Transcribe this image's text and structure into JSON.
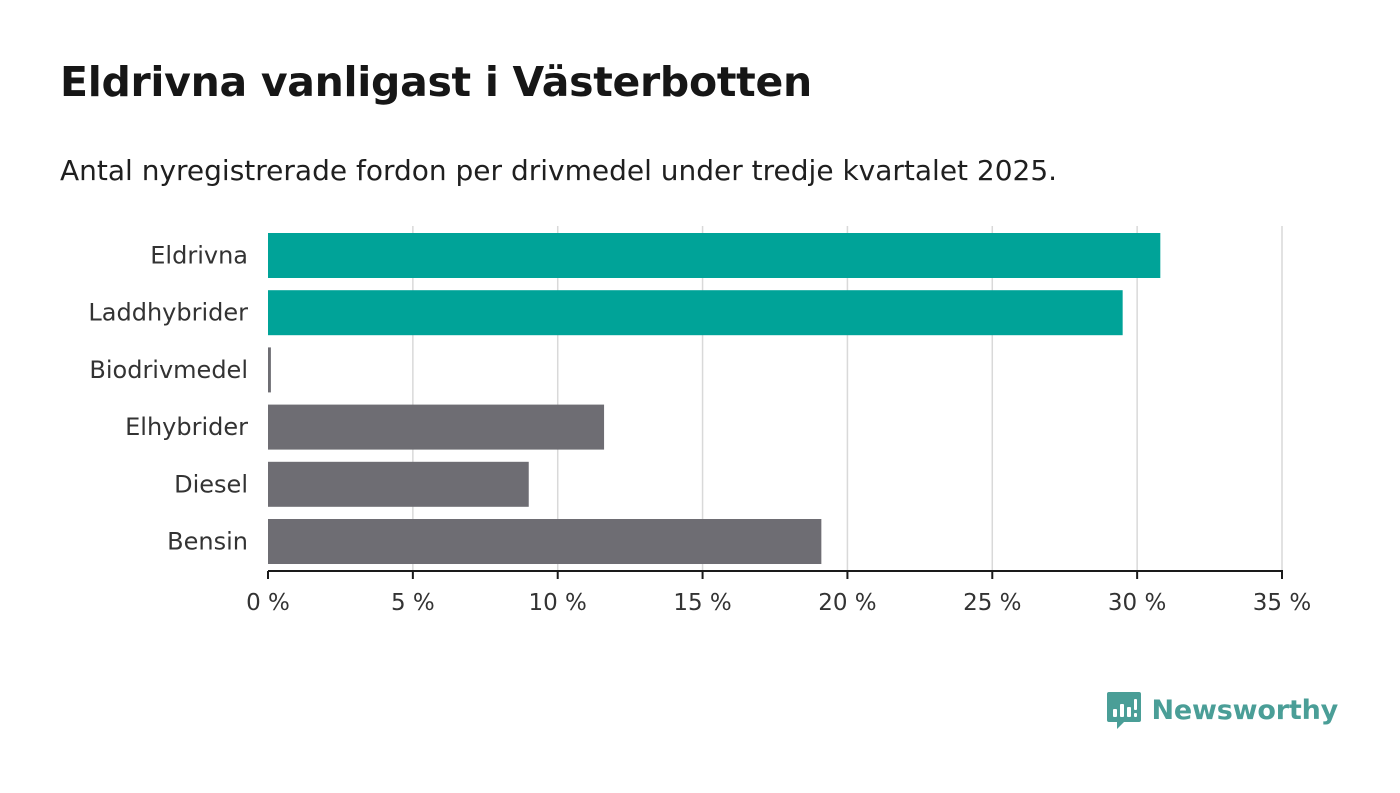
{
  "header": {
    "title": "Eldrivna vanligast i Västerbotten",
    "subtitle": "Antal nyregistrerade fordon per drivmedel under tredje kvartalet 2025."
  },
  "chart_data": {
    "type": "bar",
    "orientation": "horizontal",
    "title": "Eldrivna vanligast i Västerbotten",
    "subtitle": "Antal nyregistrerade fordon per drivmedel under tredje kvartalet 2025.",
    "categories": [
      "Eldrivna",
      "Laddhybrider",
      "Biodrivmedel",
      "Elhybrider",
      "Diesel",
      "Bensin"
    ],
    "values": [
      30.8,
      29.5,
      0.1,
      11.6,
      9.0,
      19.1
    ],
    "unit": "%",
    "highlighted": [
      true,
      true,
      false,
      false,
      false,
      false
    ],
    "colors": {
      "highlight": "#00a398",
      "default": "#6e6d73",
      "grid": "#d9d9d9",
      "axis": "#1a1a1a"
    },
    "xlim": [
      0,
      35
    ],
    "xticks": [
      0,
      5,
      10,
      15,
      20,
      25,
      30,
      35
    ],
    "xtick_labels": [
      "0 %",
      "5 %",
      "10 %",
      "15 %",
      "20 %",
      "25 %",
      "30 %",
      "35 %"
    ],
    "xlabel": "",
    "ylabel": "",
    "grid": true
  },
  "brand": {
    "name": "Newsworthy",
    "icon": "bar-chart-speech-bubble-icon",
    "color": "#4a9e97"
  }
}
